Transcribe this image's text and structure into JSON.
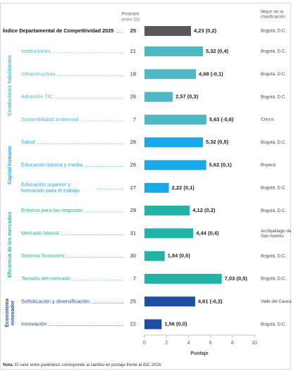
{
  "chart_data": {
    "type": "bar",
    "orientation": "horizontal",
    "position_header": "Posición",
    "position_subheader": "(entre 33)",
    "best_header": "Mejor de la\nclasificación",
    "x_label": "Puntaje",
    "note_label": "Nota:",
    "note": "El valor entre paréntesis corresponde al cambio en puntaje frente al IDC 2024.",
    "xlim": [
      0,
      10
    ],
    "xticks": [
      0,
      2,
      4,
      6,
      8,
      10
    ],
    "overall": {
      "name": "Índice Departamental de Competitividad 2025",
      "color": "#58585a",
      "position": 25,
      "value": 4.23,
      "value_label": "4,23",
      "change_label": "(0,2)",
      "best": "Bogotá, D.C."
    },
    "groups": [
      {
        "name": "Condiciones habilitantes",
        "color": "#4fb8c6",
        "categories": [
          "Instituciones",
          "Infraestructura",
          "Adopción TIC",
          "Sostenibilidad ambiental"
        ],
        "positions": [
          21,
          18,
          26,
          7
        ],
        "values": [
          5.32,
          4.68,
          2.57,
          5.63
        ],
        "value_labels": [
          "5,32",
          "4,68",
          "2,57",
          "5,63"
        ],
        "change_labels": [
          "(0,4)",
          "(-0,1)",
          "(0,3)",
          "(-0,6)"
        ],
        "best": [
          "Bogotá, D.C.",
          "Bogotá, D.C.",
          "Bogotá, D.C.",
          "Chocó"
        ]
      },
      {
        "name": "Capital humano",
        "color": "#1aa9e8",
        "categories": [
          "Salud",
          "Educación básica y media",
          "Educación superior y\nformación para el trabajo"
        ],
        "positions": [
          28,
          26,
          27
        ],
        "values": [
          5.32,
          5.62,
          2.22
        ],
        "value_labels": [
          "5,32",
          "5,62",
          "2,22"
        ],
        "change_labels": [
          "(0,5)",
          "(0,1)",
          "(0,1)"
        ],
        "best": [
          "Bogotá, D.C.",
          "Boyacá",
          "Bogotá, D.C."
        ]
      },
      {
        "name": "Eficiencia de los mercados",
        "color": "#22b2a7",
        "categories": [
          "Entorno para los negocios",
          "Mercado laboral",
          "Sistema financiero",
          "Tamaño del mercado"
        ],
        "positions": [
          29,
          31,
          30,
          7
        ],
        "values": [
          4.12,
          4.44,
          1.84,
          7.03
        ],
        "value_labels": [
          "4,12",
          "4,44",
          "1,84",
          "7,03"
        ],
        "change_labels": [
          "(0,2)",
          "(0,4)",
          "(0,5)",
          "(0,5)"
        ],
        "best": [
          "Bogotá, D.C.",
          "Archipiélago de\nSan Andrés",
          "Bogotá, D.C.",
          "Bogotá, D.C."
        ]
      },
      {
        "name": "Ecosistema\ninnovador",
        "color": "#1d4ea3",
        "categories": [
          "Sofisticación y diversificación",
          "Innovación"
        ],
        "positions": [
          25,
          22
        ],
        "values": [
          4.61,
          1.56
        ],
        "value_labels": [
          "4,61",
          "1,56"
        ],
        "change_labels": [
          "(-0,2)",
          "(0,0)"
        ],
        "best": [
          "Valle del Cauca",
          "Bogotá, D.C."
        ]
      }
    ]
  }
}
